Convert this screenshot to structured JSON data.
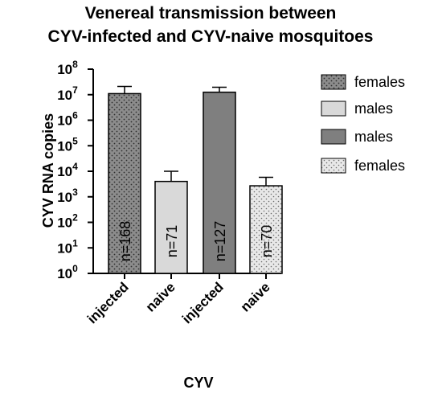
{
  "chart_data": {
    "type": "bar",
    "title_lines": [
      "Venereal transmission between",
      "CYV-infected and CYV-naive mosquitoes"
    ],
    "xlabel": "CYV",
    "ylabel": "CYV RNA copies",
    "yscale": "log10",
    "ylim": [
      1,
      100000000
    ],
    "ytick_exponents": [
      "0",
      "1",
      "2",
      "3",
      "4",
      "5",
      "6",
      "7",
      "8"
    ],
    "ytick_base": "10",
    "categories": [
      "injected",
      "naive",
      "injected",
      "naive"
    ],
    "values": [
      11000000,
      4000,
      12500000,
      2700
    ],
    "error_upper": [
      21000000,
      10000,
      19500000,
      5800
    ],
    "bar_labels": [
      "n=168",
      "n=71",
      "n=127",
      "n=70"
    ],
    "bar_colors": [
      "#8c8c8c",
      "#d9d9d9",
      "#7f7f7f",
      "#e8e8e8"
    ],
    "bar_patterns": [
      "dots",
      "none",
      "none",
      "dots"
    ],
    "legend": [
      {
        "label": "females",
        "color": "#8c8c8c",
        "pattern": "dots"
      },
      {
        "label": "males",
        "color": "#d9d9d9",
        "pattern": "none"
      },
      {
        "label": "males",
        "color": "#7f7f7f",
        "pattern": "none"
      },
      {
        "label": "females",
        "color": "#e8e8e8",
        "pattern": "dots"
      }
    ],
    "legend_position": "right",
    "grid": false
  }
}
